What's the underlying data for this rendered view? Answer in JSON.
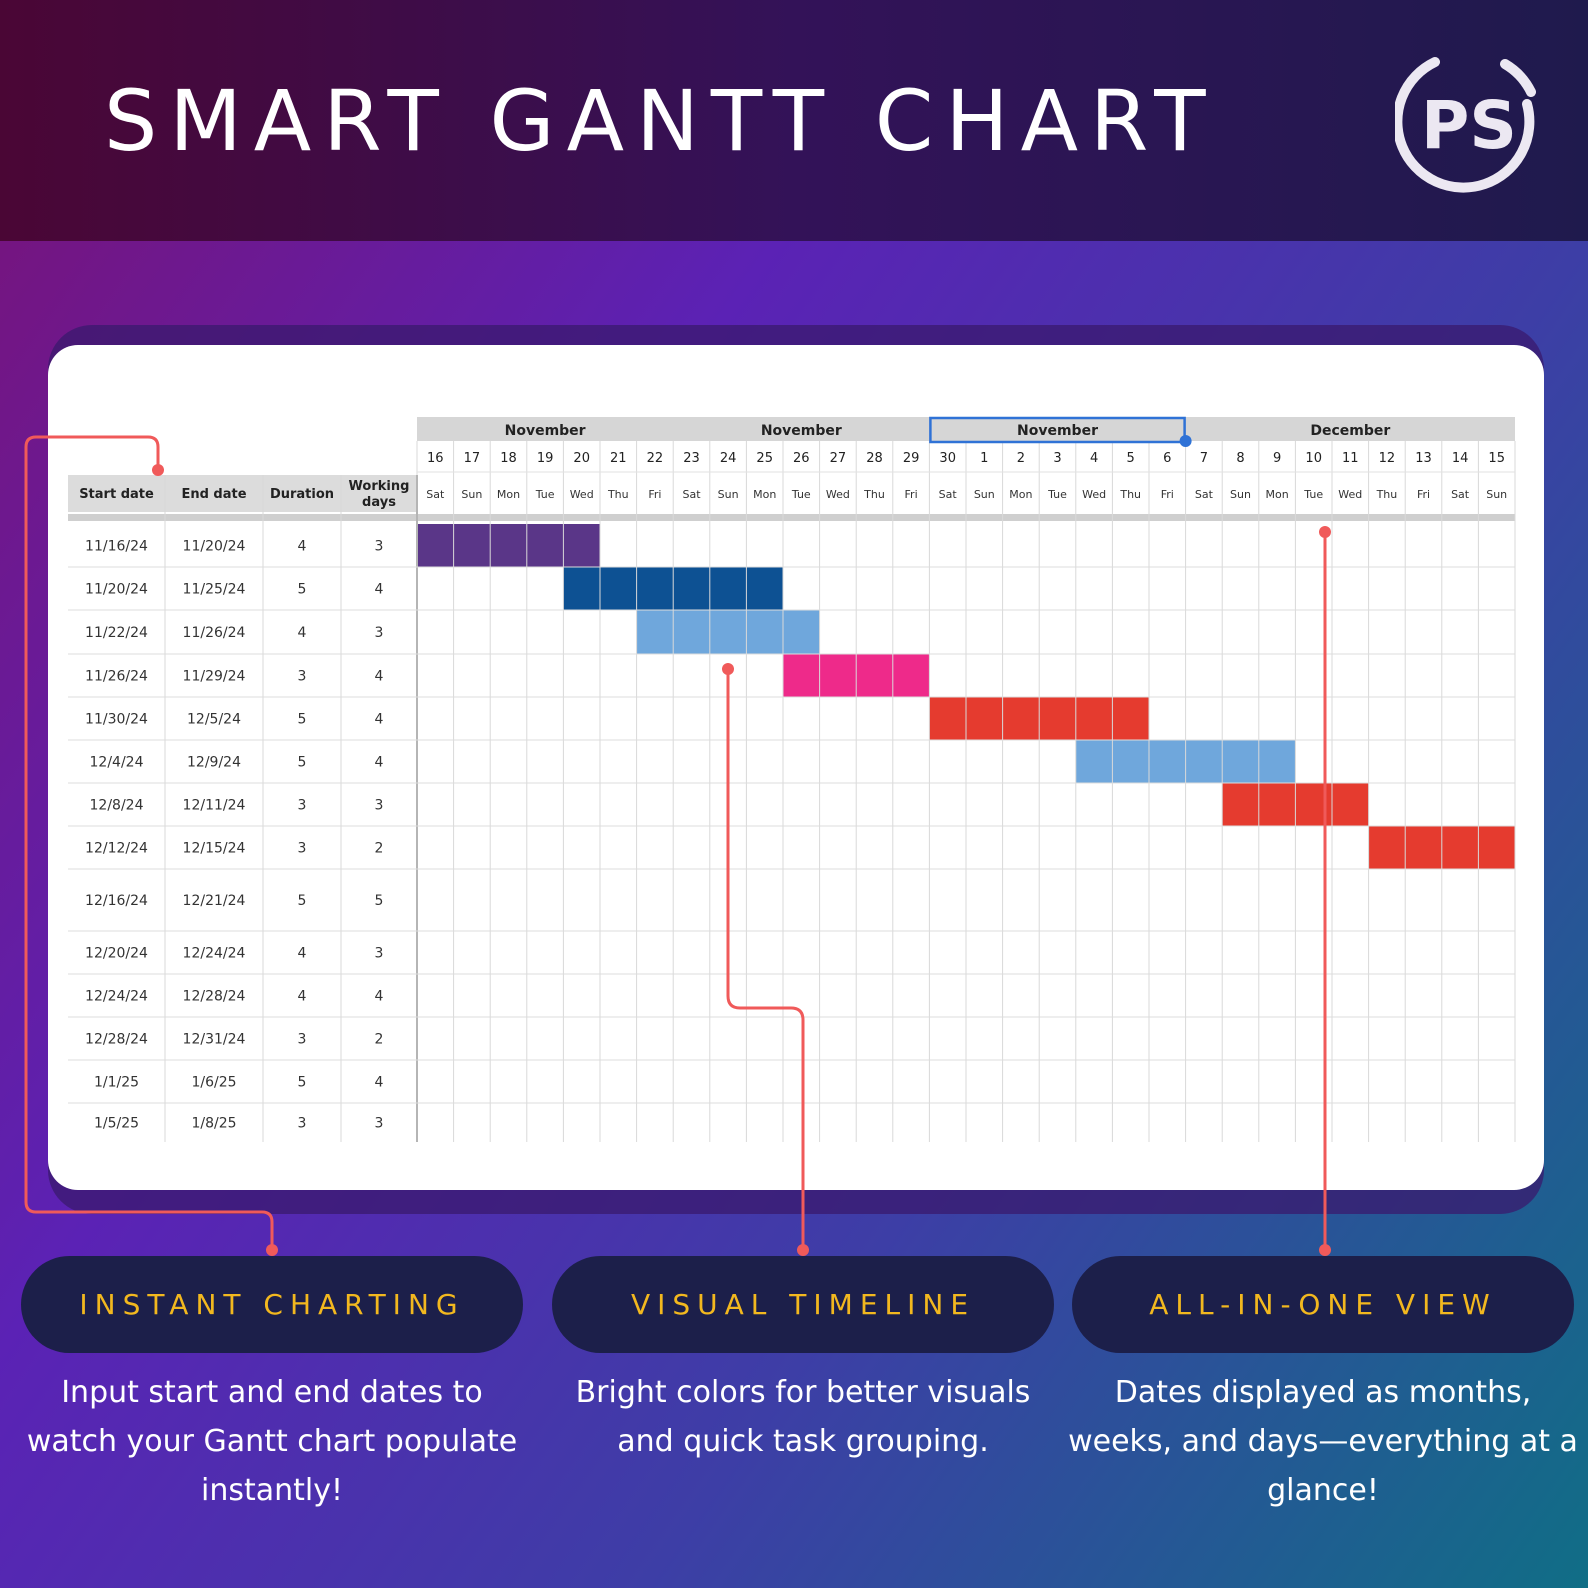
{
  "header": {
    "title": "SMART GANTT CHART",
    "logo_text": "PS"
  },
  "table": {
    "columns": [
      "Start date",
      "End date",
      "Duration",
      "Working days"
    ],
    "rows": [
      [
        "11/16/24",
        "11/20/24",
        "4",
        "3"
      ],
      [
        "11/20/24",
        "11/25/24",
        "5",
        "4"
      ],
      [
        "11/22/24",
        "11/26/24",
        "4",
        "3"
      ],
      [
        "11/26/24",
        "11/29/24",
        "3",
        "4"
      ],
      [
        "11/30/24",
        "12/5/24",
        "5",
        "4"
      ],
      [
        "12/4/24",
        "12/9/24",
        "5",
        "4"
      ],
      [
        "12/8/24",
        "12/11/24",
        "3",
        "3"
      ],
      [
        "12/12/24",
        "12/15/24",
        "3",
        "2"
      ],
      [
        "12/16/24",
        "12/21/24",
        "5",
        "5"
      ],
      [
        "12/20/24",
        "12/24/24",
        "4",
        "3"
      ],
      [
        "12/24/24",
        "12/28/24",
        "4",
        "4"
      ],
      [
        "12/28/24",
        "12/31/24",
        "3",
        "2"
      ],
      [
        "1/1/25",
        "1/6/25",
        "5",
        "4"
      ],
      [
        "1/5/25",
        "1/8/25",
        "3",
        "3"
      ]
    ]
  },
  "timeline": {
    "month_groups": [
      {
        "label": "November",
        "span": 7,
        "selected": false
      },
      {
        "label": "November",
        "span": 7,
        "selected": false
      },
      {
        "label": "November",
        "span": 7,
        "selected": true
      },
      {
        "label": "December",
        "span": 9,
        "selected": false
      }
    ],
    "day_numbers": [
      "16",
      "17",
      "18",
      "19",
      "20",
      "21",
      "22",
      "23",
      "24",
      "25",
      "26",
      "27",
      "28",
      "29",
      "30",
      "1",
      "2",
      "3",
      "4",
      "5",
      "6",
      "7",
      "8",
      "9",
      "10",
      "11",
      "12",
      "13",
      "14",
      "15"
    ],
    "weekdays": [
      "Sat",
      "Sun",
      "Mon",
      "Tue",
      "Wed",
      "Thu",
      "Fri",
      "Sat",
      "Sun",
      "Mon",
      "Tue",
      "Wed",
      "Thu",
      "Fri",
      "Sat",
      "Sun",
      "Mon",
      "Tue",
      "Wed",
      "Thu",
      "Fri",
      "Sat",
      "Sun",
      "Mon",
      "Tue",
      "Wed",
      "Thu",
      "Fri",
      "Sat",
      "Sun"
    ],
    "bars": [
      {
        "row": 0,
        "start_day": 0,
        "days": 5,
        "color": "#5a3688"
      },
      {
        "row": 1,
        "start_day": 4,
        "days": 6,
        "color": "#0d5193"
      },
      {
        "row": 2,
        "start_day": 6,
        "days": 5,
        "color": "#6fa7dc"
      },
      {
        "row": 3,
        "start_day": 10,
        "days": 4,
        "color": "#ee2a8a"
      },
      {
        "row": 4,
        "start_day": 14,
        "days": 6,
        "color": "#e53b2f"
      },
      {
        "row": 5,
        "start_day": 18,
        "days": 6,
        "color": "#6fa7dc"
      },
      {
        "row": 6,
        "start_day": 22,
        "days": 4,
        "color": "#e53b2f"
      },
      {
        "row": 7,
        "start_day": 26,
        "days": 4,
        "color": "#e53b2f"
      }
    ]
  },
  "features": [
    {
      "title": "INSTANT CHARTING",
      "description": "Input start and end dates to watch your Gantt chart populate instantly!"
    },
    {
      "title": "VISUAL TIMELINE",
      "description": "Bright colors for better visuals and quick task grouping."
    },
    {
      "title": "ALL-IN-ONE VIEW",
      "description": "Dates displayed as months, weeks, and days—everything at a glance!"
    }
  ],
  "colors": {
    "accent_gold": "#f2b81f",
    "connector_red": "#f05a5a",
    "pill_background": "#1c1f4a",
    "selection_blue": "#2f72d6"
  }
}
